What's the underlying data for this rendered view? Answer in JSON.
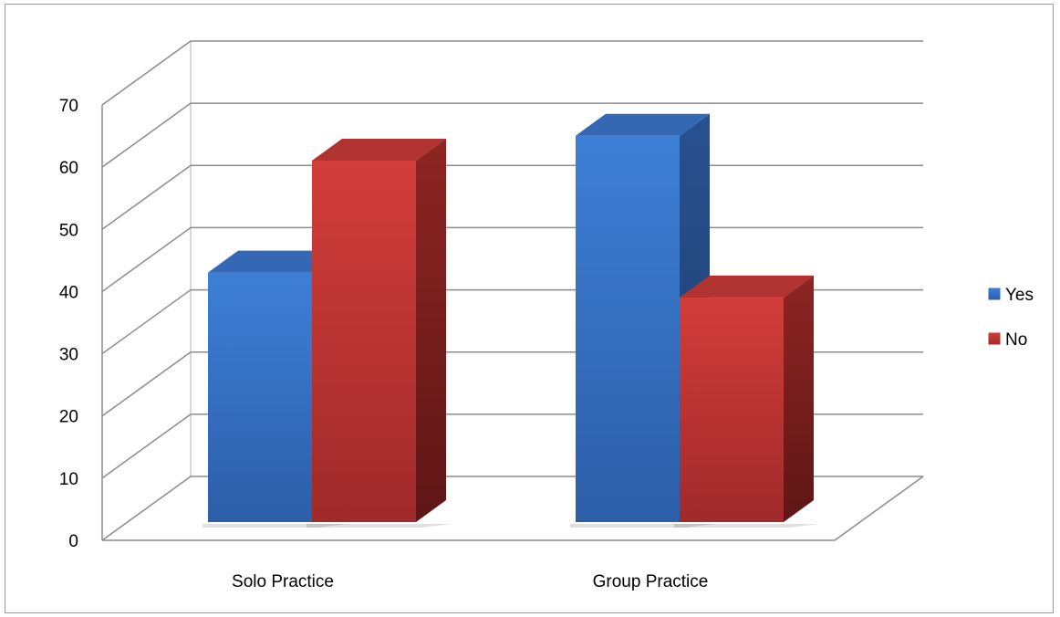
{
  "chart_data": {
    "type": "bar",
    "style": "3d-clustered-column",
    "categories": [
      "Solo Practice",
      "Group Practice"
    ],
    "series": [
      {
        "name": "Yes",
        "values": [
          41,
          63
        ],
        "color": "#3b73c4"
      },
      {
        "name": "No",
        "values": [
          59,
          37
        ],
        "color": "#c0383a"
      }
    ],
    "title": "",
    "xlabel": "",
    "ylabel": "",
    "ylim": [
      0,
      70
    ],
    "yticks": [
      0,
      10,
      20,
      30,
      40,
      50,
      60,
      70
    ],
    "grid": true,
    "legend": "right"
  }
}
